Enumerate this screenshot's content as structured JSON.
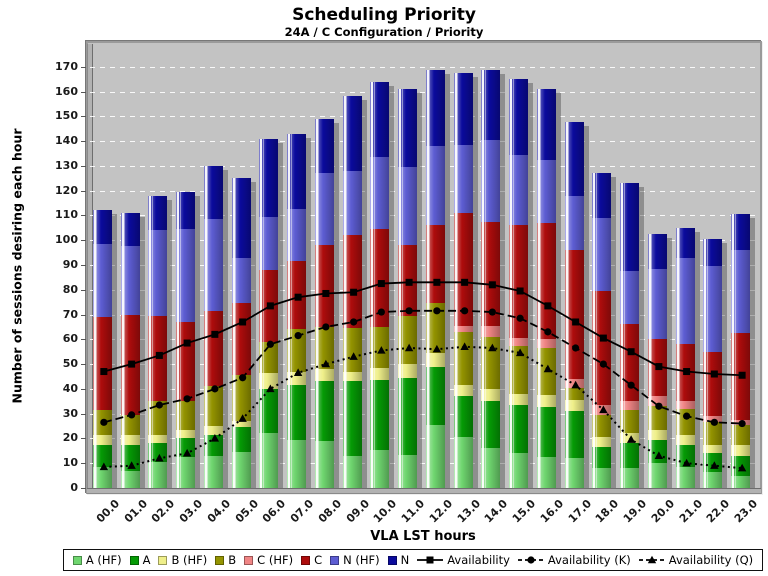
{
  "title": "Scheduling Priority",
  "subtitle": "24A / C Configuration /  Priority",
  "chart_data": {
    "type": "bar",
    "stacked": true,
    "title": "Scheduling Priority",
    "subtitle": "24A / C Configuration /  Priority",
    "xlabel": "VLA LST hours",
    "ylabel": "Number of sessions desiring each hour",
    "ylim": [
      0,
      179
    ],
    "ytick_step": 10,
    "ytick_max": 170,
    "grid": "horizontal white dashed",
    "plot_background": "#C3C3C3",
    "legend_position": "bottom",
    "categories": [
      "00.0",
      "01.0",
      "02.0",
      "03.0",
      "04.0",
      "05.0",
      "06.0",
      "07.0",
      "08.0",
      "09.0",
      "10.0",
      "11.0",
      "12.0",
      "13.0",
      "14.0",
      "15.0",
      "16.0",
      "17.0",
      "18.0",
      "19.0",
      "20.0",
      "21.0",
      "22.0",
      "23.0"
    ],
    "series": [
      {
        "name": "A (HF)",
        "color": "#6FD66F",
        "values": [
          8.5,
          7,
          10.5,
          12.5,
          13,
          14.5,
          22,
          19.5,
          19,
          13,
          15.5,
          13.5,
          25.5,
          20.5,
          16,
          14,
          12.5,
          12,
          8,
          8,
          10,
          8.5,
          6.5,
          5
        ]
      },
      {
        "name": "A",
        "color": "#059B05",
        "values": [
          9,
          10.5,
          7.5,
          7.5,
          8.5,
          10,
          18,
          22,
          24,
          30,
          28,
          31,
          23.5,
          16.5,
          19,
          19.5,
          20,
          19,
          8.5,
          10,
          9.5,
          9,
          7.5,
          8
        ]
      },
      {
        "name": "B (HF)",
        "color": "#EFEF8A",
        "values": [
          4,
          4,
          3.5,
          3.5,
          3.5,
          2.5,
          6.5,
          5.5,
          5,
          4,
          5,
          5.5,
          5.5,
          4.5,
          5,
          4.5,
          5,
          4.5,
          4,
          4,
          4,
          4,
          3.5,
          4.5
        ]
      },
      {
        "name": "B",
        "color": "#949400",
        "values": [
          10,
          8,
          13.5,
          11.5,
          16,
          18.5,
          12.5,
          17,
          17,
          17.5,
          16.5,
          19.5,
          20,
          21.5,
          21,
          19.5,
          19,
          5,
          9,
          9.5,
          9.5,
          10.5,
          9,
          8
        ]
      },
      {
        "name": "C (HF)",
        "color": "#F08585",
        "values": [
          0,
          0,
          0,
          0,
          0,
          0,
          0,
          0,
          0,
          0,
          0,
          0,
          0,
          2.5,
          4.5,
          3,
          3.5,
          3.5,
          4,
          3.5,
          4,
          3,
          2.5,
          2
        ]
      },
      {
        "name": "C",
        "color": "#AE0C0C",
        "values": [
          37.5,
          40.5,
          34.5,
          32,
          30.5,
          29,
          29,
          27.5,
          33,
          37.5,
          39.5,
          28.5,
          31.5,
          45.5,
          42,
          45.5,
          47,
          52,
          46,
          31,
          23,
          23,
          26,
          35
        ]
      },
      {
        "name": "N (HF)",
        "color": "#5D5DD3",
        "values": [
          29.5,
          27.5,
          34.5,
          37.5,
          37,
          18.5,
          21.5,
          21,
          29,
          26,
          29,
          31.5,
          32,
          27.5,
          33,
          28.5,
          25.5,
          22,
          29.5,
          21.5,
          28.5,
          35,
          34.5,
          33.5
        ]
      },
      {
        "name": "N",
        "color": "#0B0B9D",
        "values": [
          13.5,
          13.5,
          14,
          15,
          21.5,
          32,
          31.5,
          30.5,
          22,
          30,
          30.5,
          31.5,
          30.5,
          29,
          28,
          30.5,
          28.5,
          29.5,
          18,
          35.5,
          14,
          12,
          11,
          14.5
        ]
      }
    ],
    "lines": [
      {
        "name": "Availability",
        "style": "solid",
        "marker": "square",
        "color": "#000000",
        "values": [
          47,
          50,
          53.5,
          58.5,
          62,
          67,
          73.5,
          77,
          78.5,
          79,
          82.5,
          83,
          83,
          83,
          82,
          79.5,
          73.5,
          67,
          60.5,
          55,
          49,
          47,
          46,
          45.5
        ]
      },
      {
        "name": "Availability (K)",
        "style": "dashed",
        "marker": "circle",
        "color": "#000000",
        "values": [
          26.5,
          29.5,
          33.5,
          36,
          40,
          44.5,
          58,
          61.5,
          65,
          67,
          71,
          71.5,
          71.5,
          71.5,
          71,
          68.5,
          63,
          56.5,
          50,
          41.5,
          33,
          29,
          26.5,
          26
        ]
      },
      {
        "name": "Availability (Q)",
        "style": "dotted",
        "marker": "triangle",
        "color": "#000000",
        "values": [
          8.5,
          9,
          12,
          14,
          20,
          28,
          40,
          46.5,
          50,
          53,
          55.5,
          56.5,
          56,
          57,
          56.5,
          54.5,
          48,
          41.5,
          31.5,
          19.5,
          13,
          10,
          9,
          8
        ]
      }
    ]
  }
}
